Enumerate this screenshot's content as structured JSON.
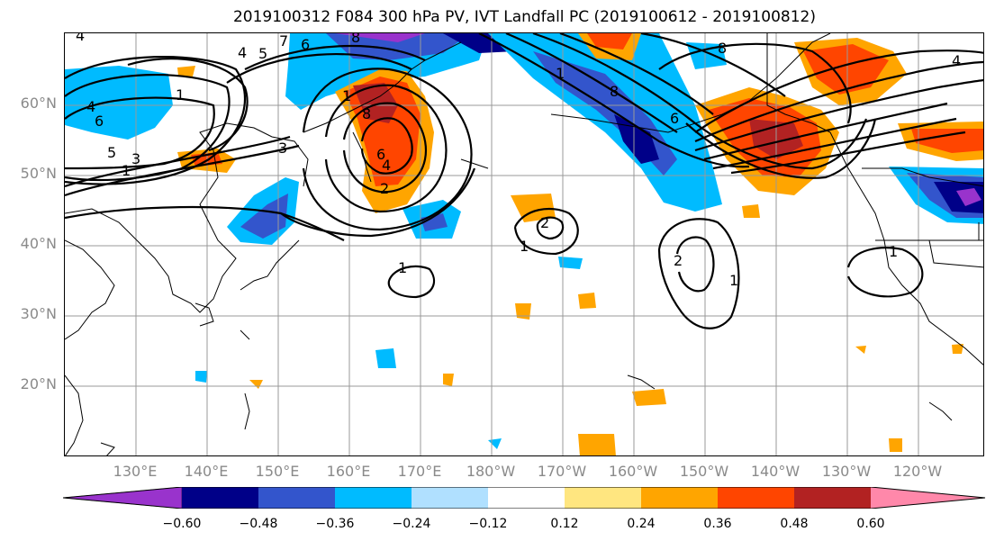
{
  "title": "2019100312 F084 300 hPa PV, IVT Landfall PC (2019100612 - 2019100812)",
  "lat_labels": [
    "60°N",
    "50°N",
    "40°N",
    "30°N",
    "20°N"
  ],
  "lon_labels": [
    "130°E",
    "140°E",
    "150°E",
    "160°E",
    "170°E",
    "180°W",
    "170°W",
    "160°W",
    "150°W",
    "140°W",
    "130°W",
    "120°W"
  ],
  "colorbar": {
    "ticks": [
      "−0.60",
      "−0.48",
      "−0.36",
      "−0.24",
      "−0.12",
      "0.12",
      "0.24",
      "0.36",
      "0.48",
      "0.60"
    ],
    "colors": [
      "#9933cc",
      "#000088",
      "#3355cc",
      "#00bbff",
      "#b0e0ff",
      "#ffffff",
      "#ffe680",
      "#ffa500",
      "#ff4500",
      "#b22222",
      "#ff88aa"
    ]
  },
  "contour_labels": [
    "1",
    "2",
    "3",
    "4",
    "5",
    "6",
    "7",
    "8"
  ]
}
